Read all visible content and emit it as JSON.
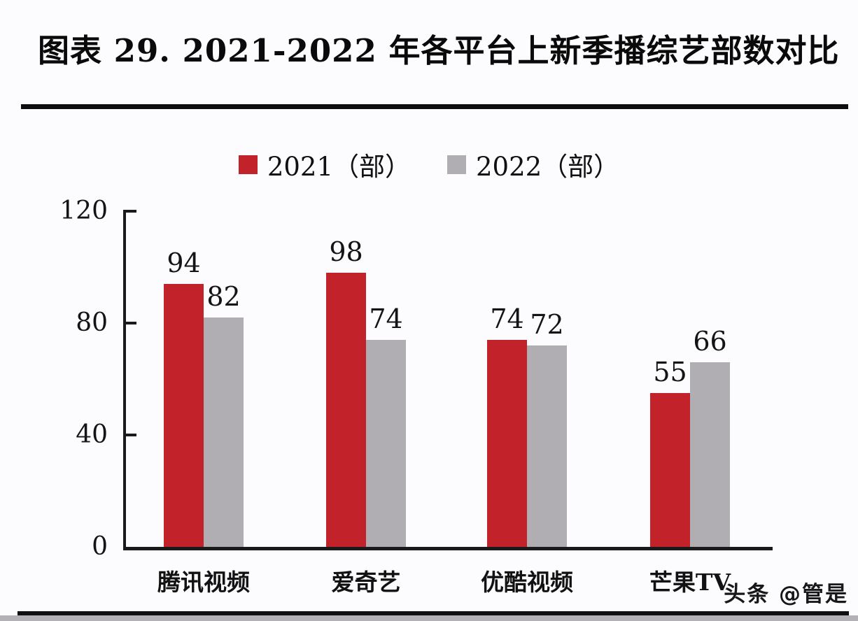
{
  "page": {
    "watermark": "头条 @管是"
  },
  "chart_data": {
    "type": "bar",
    "title": "图表 29. 2021-2022 年各平台上新季播综艺部数对比",
    "categories": [
      "腾讯视频",
      "爱奇艺",
      "优酷视频",
      "芒果TV"
    ],
    "series": [
      {
        "name": "2021（部）",
        "color": "#c2232b",
        "values": [
          94,
          98,
          74,
          55
        ]
      },
      {
        "name": "2022（部）",
        "color": "#b0aeb2",
        "values": [
          82,
          74,
          72,
          66
        ]
      }
    ],
    "y_ticks": [
      0,
      40,
      80,
      120
    ],
    "ylim": [
      0,
      120
    ],
    "xlabel": "",
    "ylabel": "",
    "grid": false,
    "legend_position": "top",
    "value_labels": true
  }
}
